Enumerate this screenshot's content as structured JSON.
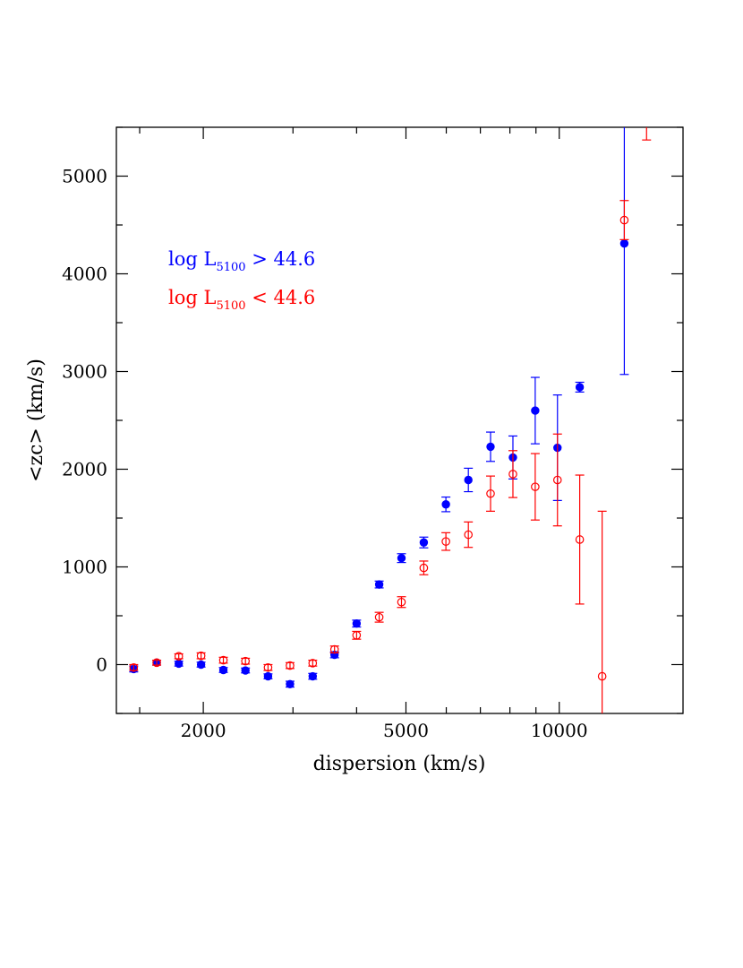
{
  "chart_data": {
    "type": "scatter",
    "xlabel": "dispersion (km/s)",
    "ylabel": "<zc> (km/s)",
    "x_scale": "log",
    "xlim": [
      1350,
      17500
    ],
    "ylim": [
      -500,
      5500
    ],
    "x_ticks": [
      2000,
      5000,
      10000
    ],
    "x_tick_labels": [
      "2000",
      "5000",
      "10000"
    ],
    "y_ticks": [
      0,
      1000,
      2000,
      3000,
      4000,
      5000
    ],
    "y_tick_labels": [
      "0",
      "1000",
      "2000",
      "3000",
      "4000",
      "5000"
    ],
    "grid": false,
    "legend_placement": "upper-left",
    "series": [
      {
        "legend_text": "log L",
        "legend_sub": "5100",
        "legend_op": ">",
        "legend_value": "44.6",
        "color": "#0000ff",
        "marker": "filled-circle",
        "points": [
          {
            "x": 1460,
            "y": -45,
            "err": 30
          },
          {
            "x": 1620,
            "y": 20,
            "err": 25
          },
          {
            "x": 1790,
            "y": 10,
            "err": 25
          },
          {
            "x": 1980,
            "y": 0,
            "err": 25
          },
          {
            "x": 2190,
            "y": -55,
            "err": 25
          },
          {
            "x": 2420,
            "y": -60,
            "err": 25
          },
          {
            "x": 2680,
            "y": -120,
            "err": 25
          },
          {
            "x": 2960,
            "y": -200,
            "err": 30
          },
          {
            "x": 3280,
            "y": -120,
            "err": 30
          },
          {
            "x": 3620,
            "y": 100,
            "err": 30
          },
          {
            "x": 4000,
            "y": 420,
            "err": 35
          },
          {
            "x": 4430,
            "y": 820,
            "err": 35
          },
          {
            "x": 4900,
            "y": 1090,
            "err": 45
          },
          {
            "x": 5420,
            "y": 1250,
            "err": 55
          },
          {
            "x": 5990,
            "y": 1640,
            "err": 75
          },
          {
            "x": 6630,
            "y": 1890,
            "err": 120
          },
          {
            "x": 7330,
            "y": 2230,
            "err": 150
          },
          {
            "x": 8110,
            "y": 2120,
            "err": 220
          },
          {
            "x": 8970,
            "y": 2600,
            "err": 340
          },
          {
            "x": 9920,
            "y": 2220,
            "err": 540
          },
          {
            "x": 10970,
            "y": 2840,
            "err": 50
          },
          {
            "x": 13420,
            "y": 4310,
            "err": 1340
          }
        ]
      },
      {
        "legend_text": "log L",
        "legend_sub": "5100",
        "legend_op": "<",
        "legend_value": "44.6",
        "color": "#ff0000",
        "marker": "open-circle",
        "points": [
          {
            "x": 1460,
            "y": -30,
            "err": 30
          },
          {
            "x": 1620,
            "y": 20,
            "err": 25
          },
          {
            "x": 1790,
            "y": 85,
            "err": 25
          },
          {
            "x": 1980,
            "y": 90,
            "err": 30
          },
          {
            "x": 2190,
            "y": 45,
            "err": 30
          },
          {
            "x": 2420,
            "y": 35,
            "err": 30
          },
          {
            "x": 2680,
            "y": -30,
            "err": 30
          },
          {
            "x": 2960,
            "y": -10,
            "err": 30
          },
          {
            "x": 3280,
            "y": 15,
            "err": 30
          },
          {
            "x": 3620,
            "y": 155,
            "err": 35
          },
          {
            "x": 4000,
            "y": 300,
            "err": 40
          },
          {
            "x": 4430,
            "y": 485,
            "err": 50
          },
          {
            "x": 4900,
            "y": 640,
            "err": 55
          },
          {
            "x": 5420,
            "y": 990,
            "err": 70
          },
          {
            "x": 5990,
            "y": 1260,
            "err": 90
          },
          {
            "x": 6630,
            "y": 1330,
            "err": 130
          },
          {
            "x": 7330,
            "y": 1750,
            "err": 180
          },
          {
            "x": 8110,
            "y": 1950,
            "err": 240
          },
          {
            "x": 8970,
            "y": 1820,
            "err": 340
          },
          {
            "x": 9920,
            "y": 1890,
            "err": 470
          },
          {
            "x": 10970,
            "y": 1280,
            "err": 660
          },
          {
            "x": 12140,
            "y": -120,
            "err": 1690
          },
          {
            "x": 13420,
            "y": 4550,
            "err": 200
          },
          {
            "x": 14840,
            "y": 5600,
            "err": 230
          }
        ]
      }
    ]
  }
}
